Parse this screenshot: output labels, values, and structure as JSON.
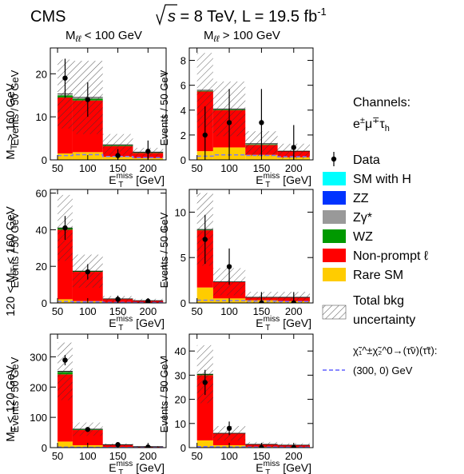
{
  "header": {
    "experiment": "CMS",
    "energy_pre": "s",
    "energy_post": " = 8 TeV, L = 19.5 fb",
    "lumi_exp": "-1"
  },
  "columns": {
    "left": {
      "main": "M",
      "sub": "ℓℓ",
      "post": " < 100 GeV"
    },
    "right": {
      "main": "M",
      "sub": "ℓℓ",
      "post": " > 100 GeV"
    }
  },
  "rows": [
    {
      "pre": "",
      "main": "M",
      "sub": "T",
      "post": " > 160 GeV"
    },
    {
      "pre": "120 < ",
      "main": "M",
      "sub": "T",
      "post": " < 160 GeV"
    },
    {
      "pre": "",
      "main": "M",
      "sub": "T",
      "post": " < 120 GeV"
    }
  ],
  "axis": {
    "ylabel": "Events / 50 GeV",
    "xlabel_main": "E",
    "xlabel_sub": "T",
    "xlabel_sup": "miss",
    "xlabel_unit": " [GeV]",
    "xticks": [
      "50",
      "100",
      "150",
      "200"
    ]
  },
  "colors": {
    "rare_sm": "#ffcc00",
    "nonprompt": "#ff0000",
    "wz": "#009900",
    "zgamma": "#999999",
    "zz": "#0033ff",
    "sm_higgs": "#00ffff",
    "signal": "#7777ff",
    "data": "#000000"
  },
  "legend": {
    "channels_title": "Channels:",
    "channel_main": "e",
    "channel_sup1": "±",
    "channel_mid": "μ",
    "channel_sup2": "∓",
    "channel_tau": "τ",
    "channel_sub": "h",
    "data": "Data",
    "sm_higgs": "SM with H",
    "zz": "ZZ",
    "zgamma": "Zγ*",
    "wz": "WZ",
    "nonprompt": "Non-prompt ℓ",
    "rare_sm": "Rare SM",
    "total_unc_1": "Total bkg",
    "total_unc_2": "uncertainty",
    "signal_process": "χ̃₁^±χ̃₂^0→(τ̃ν)(τ̃τ):",
    "signal_mass": "(300, 0) GeV"
  },
  "chart_data": [
    {
      "type": "bar",
      "panel": "MT>160, Mll<100",
      "bins": [
        [
          50,
          75
        ],
        [
          75,
          125
        ],
        [
          125,
          175
        ],
        [
          175,
          225
        ]
      ],
      "ylim": [
        0,
        26
      ],
      "yticks": [
        0,
        10,
        20
      ],
      "rare_sm": [
        1.5,
        1.8,
        0.7,
        0.4
      ],
      "nonprompt": [
        13.0,
        12.0,
        2.5,
        1.2
      ],
      "wz": [
        0.5,
        0.4,
        0.2,
        0.1
      ],
      "zgamma": [
        0.1,
        0.1,
        0.05,
        0.05
      ],
      "total": [
        15.3,
        14.5,
        3.5,
        1.8
      ],
      "uncertainty": [
        8.0,
        8.5,
        2.5,
        1.0
      ],
      "data": [
        19,
        14,
        1,
        2
      ],
      "data_err": [
        4.5,
        4.0,
        1.5,
        2.5
      ],
      "signal": [
        1.0,
        1.2,
        0.8,
        0.5
      ]
    },
    {
      "type": "bar",
      "panel": "MT>160, Mll>100",
      "bins": [
        [
          50,
          75
        ],
        [
          75,
          125
        ],
        [
          125,
          175
        ],
        [
          175,
          225
        ]
      ],
      "ylim": [
        0,
        9
      ],
      "yticks": [
        0,
        2,
        4,
        6,
        8
      ],
      "rare_sm": [
        0.7,
        1.0,
        0.4,
        0.2
      ],
      "nonprompt": [
        4.8,
        3.0,
        0.8,
        0.5
      ],
      "wz": [
        0.05,
        0.05,
        0.05,
        0.02
      ],
      "zgamma": [
        0.02,
        0.02,
        0.02,
        0.01
      ],
      "total": [
        5.6,
        4.1,
        1.3,
        0.7
      ],
      "uncertainty": [
        3.0,
        2.2,
        1.0,
        0.6
      ],
      "data": [
        2,
        3,
        3,
        1
      ],
      "data_err": [
        2.3,
        2.7,
        2.7,
        1.8
      ],
      "signal": [
        0.3,
        0.4,
        0.35,
        0.25
      ]
    },
    {
      "type": "bar",
      "panel": "120<MT<160, Mll<100",
      "bins": [
        [
          50,
          75
        ],
        [
          75,
          125
        ],
        [
          125,
          175
        ],
        [
          175,
          225
        ]
      ],
      "ylim": [
        0,
        62
      ],
      "yticks": [
        0,
        20,
        40,
        60
      ],
      "rare_sm": [
        2.0,
        1.0,
        0.3,
        0.2
      ],
      "nonprompt": [
        38.0,
        16.0,
        1.8,
        1.0
      ],
      "wz": [
        0.8,
        0.3,
        0.1,
        0.05
      ],
      "zgamma": [
        0.2,
        0.1,
        0.05,
        0.02
      ],
      "total": [
        41.0,
        17.4,
        2.25,
        1.27
      ],
      "uncertainty": [
        18.0,
        9.0,
        1.5,
        1.0
      ],
      "data": [
        41,
        17,
        2,
        1
      ],
      "data_err": [
        6.5,
        4.2,
        2.0,
        1.5
      ],
      "signal": [
        0.8,
        0.6,
        0.3,
        0.2
      ]
    },
    {
      "type": "bar",
      "panel": "120<MT<160, Mll>100",
      "bins": [
        [
          50,
          75
        ],
        [
          75,
          125
        ],
        [
          125,
          175
        ],
        [
          175,
          225
        ]
      ],
      "ylim": [
        0,
        12.5
      ],
      "yticks": [
        0,
        5,
        10
      ],
      "rare_sm": [
        1.7,
        0.5,
        0.3,
        0.2
      ],
      "nonprompt": [
        6.3,
        1.8,
        0.3,
        0.4
      ],
      "wz": [
        0.05,
        0.02,
        0.02,
        0.01
      ],
      "zgamma": [
        0.02,
        0.01,
        0.01,
        0.01
      ],
      "total": [
        8.1,
        2.33,
        0.63,
        0.62
      ],
      "uncertainty": [
        4.0,
        1.5,
        0.6,
        0.6
      ],
      "data": [
        7,
        4,
        0,
        0
      ],
      "data_err": [
        2.7,
        2.0,
        1.2,
        1.2
      ],
      "signal": [
        0.3,
        0.25,
        0.2,
        0.15
      ]
    },
    {
      "type": "bar",
      "panel": "MT<120, Mll<100",
      "bins": [
        [
          50,
          75
        ],
        [
          75,
          125
        ],
        [
          125,
          175
        ],
        [
          175,
          225
        ]
      ],
      "ylim": [
        0,
        375
      ],
      "yticks": [
        0,
        100,
        200,
        300
      ],
      "rare_sm": [
        20,
        8,
        2,
        1
      ],
      "nonprompt": [
        222,
        50,
        7,
        2
      ],
      "wz": [
        8,
        2,
        0.5,
        0.2
      ],
      "zgamma": [
        2,
        1,
        0.3,
        0.1
      ],
      "total": [
        252,
        61,
        9.8,
        3.3
      ],
      "uncertainty": [
        95,
        22,
        4,
        2
      ],
      "data": [
        289,
        60,
        10,
        2
      ],
      "data_err": [
        17,
        7.7,
        3.2,
        1.5
      ],
      "signal": [
        1.5,
        1.0,
        0.5,
        0.3
      ]
    },
    {
      "type": "bar",
      "panel": "MT<120, Mll>100",
      "bins": [
        [
          50,
          75
        ],
        [
          75,
          125
        ],
        [
          125,
          175
        ],
        [
          175,
          225
        ]
      ],
      "ylim": [
        0,
        47
      ],
      "yticks": [
        0,
        10,
        20,
        30,
        40
      ],
      "rare_sm": [
        3.0,
        1.0,
        0.3,
        0.2
      ],
      "nonprompt": [
        27.0,
        4.8,
        1.0,
        0.8
      ],
      "wz": [
        0.3,
        0.1,
        0.03,
        0.02
      ],
      "zgamma": [
        0.1,
        0.05,
        0.02,
        0.01
      ],
      "total": [
        30.4,
        5.95,
        1.35,
        1.03
      ],
      "uncertainty": [
        12.0,
        3.0,
        1.0,
        0.8
      ],
      "data": [
        27,
        8,
        0,
        0
      ],
      "data_err": [
        5.2,
        2.8,
        1.2,
        1.2
      ],
      "signal": [
        0.4,
        0.3,
        0.2,
        0.15
      ]
    }
  ]
}
